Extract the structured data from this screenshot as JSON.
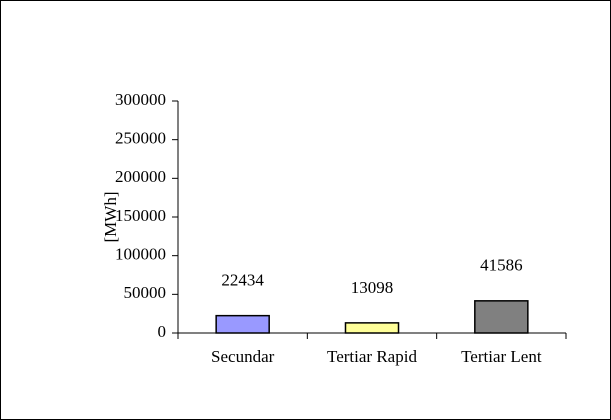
{
  "chart_data": {
    "type": "bar",
    "y_label": "[MWh]",
    "categories": [
      "Secundar",
      "Tertiar Rapid",
      "Tertiar Lent"
    ],
    "values": [
      22434,
      13098,
      41586
    ],
    "colors": [
      "#9999ff",
      "#ffff99",
      "#808080"
    ],
    "ylim": [
      0,
      300000
    ],
    "yticks": [
      0,
      50000,
      100000,
      150000,
      200000,
      250000,
      300000
    ],
    "grid": false
  }
}
